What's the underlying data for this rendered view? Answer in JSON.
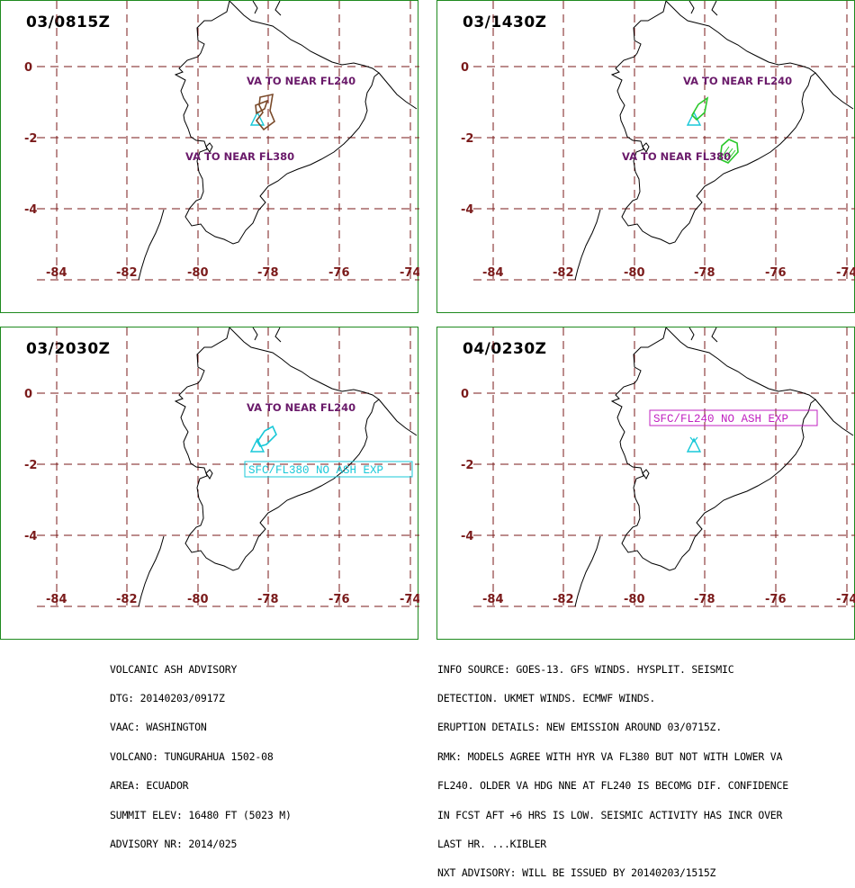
{
  "panels": [
    {
      "time": "03/0815Z",
      "labels": [
        "VA TO NEAR FL240",
        "VA TO NEAR FL380"
      ],
      "boxes": []
    },
    {
      "time": "03/1430Z",
      "labels": [
        "VA TO NEAR FL240",
        "VA TO NEAR FL380"
      ],
      "boxes": []
    },
    {
      "time": "03/2030Z",
      "labels": [
        "VA TO NEAR FL240"
      ],
      "boxes": [
        {
          "text": "SFC/FL380 NO ASH EXP",
          "color": "#19c8d8"
        }
      ]
    },
    {
      "time": "04/0230Z",
      "labels": [],
      "boxes": [
        {
          "text": "SFC/FL240 NO ASH EXP",
          "color": "#c020c0"
        }
      ]
    }
  ],
  "axes": {
    "lat_ticks": [
      "0",
      "-2",
      "-4"
    ],
    "lon_ticks": [
      "-84",
      "-82",
      "-80",
      "-78",
      "-76",
      "-74"
    ]
  },
  "advisory_left": [
    "VOLCANIC ASH ADVISORY",
    "DTG: 20140203/0917Z",
    "VAAC: WASHINGTON",
    "VOLCANO: TUNGURAHUA 1502-08",
    "AREA: ECUADOR",
    "SUMMIT ELEV: 16480 FT (5023 M)",
    "ADVISORY NR: 2014/025"
  ],
  "advisory_right": [
    "INFO SOURCE: GOES-13. GFS WINDS. HYSPLIT. SEISMIC",
    "DETECTION. UKMET WINDS. ECMWF WINDS.",
    "ERUPTION DETAILS: NEW EMISSION AROUND 03/0715Z.",
    "RMK: MODELS AGREE WITH HYR VA FL380 BUT NOT WITH LOWER VA",
    "FL240. OLDER VA HDG NNE AT FL240 IS BECOMG DIF. CONFIDENCE",
    "IN FCST AFT +6 HRS IS LOW. SEISMIC ACTIVITY HAS INCR OVER",
    "LAST HR. ...KIBLER",
    "NXT ADVISORY: WILL BE ISSUED BY 20140203/1515Z"
  ],
  "colors": {
    "frame": "#1f8a1f",
    "grid": "#7a1a1a",
    "volcano": "#19c8d8",
    "ash_fl240_t0": "#7a4a2a",
    "ash_t1": "#2ac82a",
    "ash_t2": "#19c8d8",
    "label": "#6a1a6a"
  }
}
